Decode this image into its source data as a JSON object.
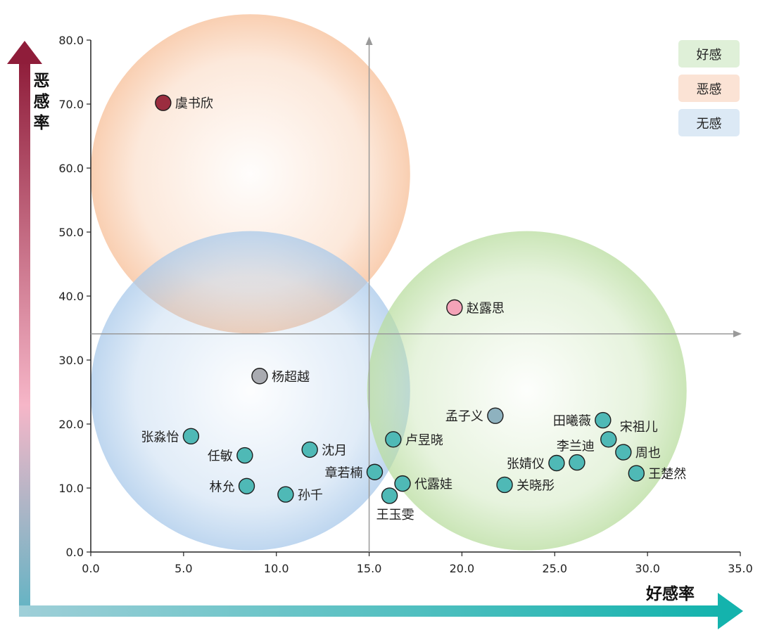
{
  "chart_data": {
    "type": "scatter",
    "xlabel": "好感率",
    "ylabel": "恶感率",
    "xlim": [
      0,
      35
    ],
    "ylim": [
      0,
      80
    ],
    "x_ticks": [
      "0.0",
      "5.0",
      "10.0",
      "15.0",
      "20.0",
      "25.0",
      "30.0",
      "35.0"
    ],
    "y_ticks": [
      "0.0",
      "10.0",
      "20.0",
      "30.0",
      "40.0",
      "50.0",
      "60.0",
      "70.0",
      "80.0"
    ],
    "reference_lines": {
      "x": 15.0,
      "y": 34.1
    },
    "legend": {
      "placement": "top-right",
      "items": [
        {
          "label": "好感",
          "color": "#dff0d8"
        },
        {
          "label": "恶感",
          "color": "#fbe3d5"
        },
        {
          "label": "无感",
          "color": "#dce9f5"
        }
      ]
    },
    "regions": [
      {
        "label": "恶感",
        "x": 8.6,
        "y": 59.1,
        "color": "#f7bf98"
      },
      {
        "label": "无感",
        "x": 8.6,
        "y": 25.2,
        "color": "#a9c9ea"
      },
      {
        "label": "好感",
        "x": 23.5,
        "y": 25.2,
        "color": "#b9dd9f"
      }
    ],
    "points": [
      {
        "name": "虞书欣",
        "x": 3.9,
        "y": 70.2,
        "color": "#9b2d3f"
      },
      {
        "name": "赵露思",
        "x": 19.6,
        "y": 38.2,
        "color": "#f4a3b8"
      },
      {
        "name": "杨超越",
        "x": 9.1,
        "y": 27.5,
        "color": "#a9abb1"
      },
      {
        "name": "孟子义",
        "x": 21.8,
        "y": 21.3,
        "color": "#8eb2bf"
      },
      {
        "name": "田曦薇",
        "x": 27.6,
        "y": 20.6,
        "color": "#4fb9b6"
      },
      {
        "name": "张淼怡",
        "x": 5.4,
        "y": 18.1,
        "color": "#4fb9b6"
      },
      {
        "name": "宋祖儿",
        "x": 27.9,
        "y": 17.6,
        "color": "#4fb9b6"
      },
      {
        "name": "卢昱晓",
        "x": 16.3,
        "y": 17.6,
        "color": "#4fb9b6"
      },
      {
        "name": "沈月",
        "x": 11.8,
        "y": 16.0,
        "color": "#4fb9b6"
      },
      {
        "name": "周也",
        "x": 28.7,
        "y": 15.6,
        "color": "#4fb9b6"
      },
      {
        "name": "任敏",
        "x": 8.3,
        "y": 15.1,
        "color": "#4fb9b6"
      },
      {
        "name": "李兰迪",
        "x": 26.2,
        "y": 14.0,
        "color": "#4fb9b6"
      },
      {
        "name": "张婧仪",
        "x": 25.1,
        "y": 13.9,
        "color": "#4fb9b6"
      },
      {
        "name": "章若楠",
        "x": 15.3,
        "y": 12.5,
        "color": "#4fb9b6"
      },
      {
        "name": "王楚然",
        "x": 29.4,
        "y": 12.3,
        "color": "#4fb9b6"
      },
      {
        "name": "代露娃",
        "x": 16.8,
        "y": 10.7,
        "color": "#4fb9b6"
      },
      {
        "name": "关晓彤",
        "x": 22.3,
        "y": 10.5,
        "color": "#4fb9b6"
      },
      {
        "name": "林允",
        "x": 8.4,
        "y": 10.3,
        "color": "#4fb9b6"
      },
      {
        "name": "孙千",
        "x": 10.5,
        "y": 9.0,
        "color": "#4fb9b6"
      },
      {
        "name": "王玉雯",
        "x": 16.1,
        "y": 8.8,
        "color": "#4fb9b6"
      }
    ]
  }
}
